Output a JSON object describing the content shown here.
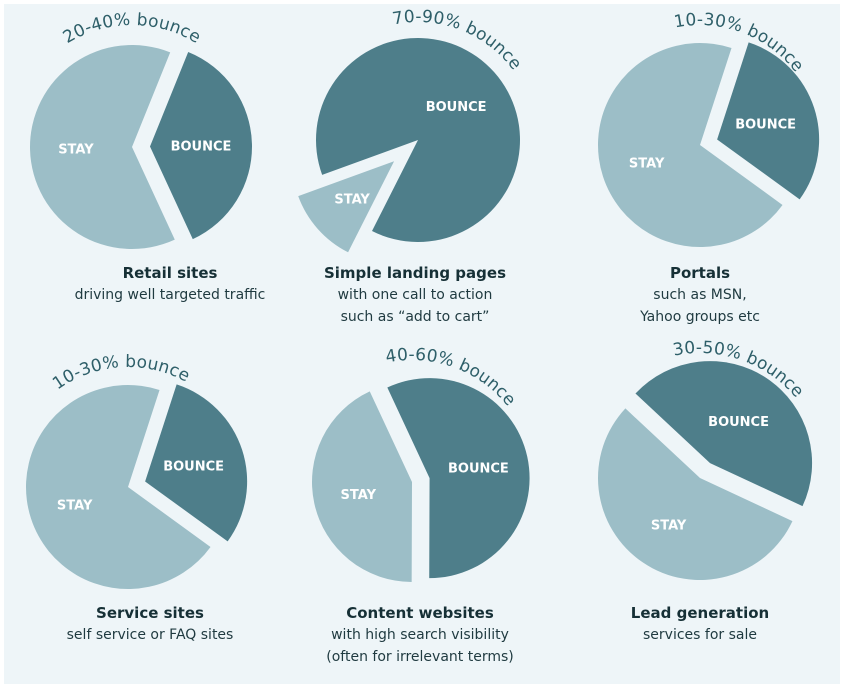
{
  "colors": {
    "background": "#eef5f8",
    "bounce": "#4e7e8a",
    "stay": "#9cbec7",
    "callout_text": "#2e5f69"
  },
  "chart_data": [
    {
      "type": "pie",
      "title": "Retail sites",
      "subtitle": [
        "driving well targeted traffic"
      ],
      "annotation": "20-40% bounce",
      "slices": [
        {
          "label": "BOUNCE",
          "value": 37,
          "exploded": true
        },
        {
          "label": "STAY",
          "value": 63
        }
      ]
    },
    {
      "type": "pie",
      "title": "Simple landing pages",
      "subtitle": [
        "with one call to action",
        "such as “add to cart”"
      ],
      "annotation": "70-90% bounce",
      "slices": [
        {
          "label": "BOUNCE",
          "value": 88
        },
        {
          "label": "STAY",
          "value": 12,
          "exploded": true
        }
      ]
    },
    {
      "type": "pie",
      "title": "Portals",
      "subtitle": [
        "such as MSN,",
        "Yahoo groups etc"
      ],
      "annotation": "10-30% bounce",
      "slices": [
        {
          "label": "BOUNCE",
          "value": 30,
          "exploded": true
        },
        {
          "label": "STAY",
          "value": 70
        }
      ]
    },
    {
      "type": "pie",
      "title": "Service sites",
      "subtitle": [
        "self service or FAQ sites"
      ],
      "annotation": "10-30% bounce",
      "slices": [
        {
          "label": "BOUNCE",
          "value": 30,
          "exploded": true
        },
        {
          "label": "STAY",
          "value": 70
        }
      ]
    },
    {
      "type": "pie",
      "title": "Content websites",
      "subtitle": [
        "with high search visibility",
        "(often for irrelevant terms)"
      ],
      "annotation": "40-60% bounce",
      "slices": [
        {
          "label": "BOUNCE",
          "value": 57,
          "exploded": true
        },
        {
          "label": "STAY",
          "value": 43
        }
      ]
    },
    {
      "type": "pie",
      "title": "Lead generation",
      "subtitle": [
        "services for sale"
      ],
      "annotation": "30-50% bounce",
      "slices": [
        {
          "label": "BOUNCE",
          "value": 45,
          "exploded": true
        },
        {
          "label": "STAY",
          "value": 55
        }
      ]
    }
  ]
}
